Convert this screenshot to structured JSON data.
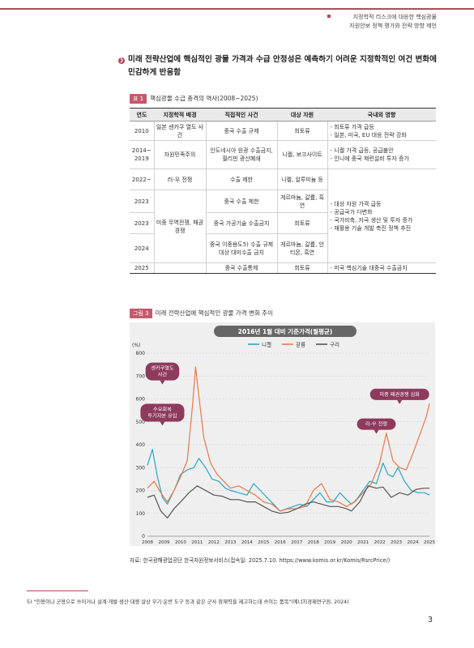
{
  "header": {
    "line1": "지정학적 리스크에 대응한 핵심광물",
    "line2": "자원안보 정책 평가와 전략 방향 제언"
  },
  "section": {
    "icon_char": "❯",
    "title": "미래 전략산업에 핵심적인 광물 가격과 수급 안정성은 예측하기 어려운 지정학적인 여건 변화에 민감하게 반응함"
  },
  "table": {
    "tag": "표 1",
    "title": "핵심광물 수급 충격의 역사(2008~2025)",
    "headers": [
      "연도",
      "지정학적 배경",
      "직접적인 사건",
      "대상 자원",
      "국내외 영향"
    ],
    "rows": [
      {
        "year": "2010",
        "background": "일본 센카쿠 열도 사건",
        "event": "중국 수출 규제",
        "resource": "희토류",
        "impact": "- 희토류 가격 급등\n- 일본, 미국, EU 대응 전략 강화"
      },
      {
        "year": "2014~ 2019",
        "background": "자원민족주의",
        "event": "인도네시아 원광 수출금지, 필리핀 광산폐쇄",
        "resource": "니켈, 보크사이트",
        "impact": "- 니켈 가격 급등, 공급불안\n- 인니에 중국 제련설비 투자 증가"
      },
      {
        "year": "2022~",
        "background": "러-우 전쟁",
        "event": "수출 제한",
        "resource": "니켈, 알루미늄 등",
        "impact": ""
      },
      {
        "year": "2023",
        "background": "",
        "event": "중국 수출 제한",
        "resource": "게르마늄, 갈륨, 흑연",
        "impact": ""
      },
      {
        "year": "2023",
        "background": "",
        "event": "중국 가공기술 수출금지",
        "resource": "희토류",
        "impact": ""
      },
      {
        "year": "2024",
        "background": "",
        "event": "중국 이중용도5) 수출 규제 대상 대미수출 금지",
        "resource": "게르마늄, 갈륨, 안티몬, 흑연",
        "impact": ""
      },
      {
        "year": "2025",
        "background": "",
        "event": "중국 수출통제",
        "resource": "희토류",
        "impact": "- 미국 핵심기술 대중국 수출금지"
      }
    ],
    "merged_background": "미중 무역전쟁, 패권경쟁",
    "merged_impact": "- 대상 자원 가격 급등\n- 공급국가 다변화\n- 국가비축, 자국 생산 및 투자 증가\n- 재활용 기술 개발 촉진 정책 추진"
  },
  "figure": {
    "tag": "그림 3",
    "title": "미래 전략산업에 핵심적인 광물 가격 변화 추이"
  },
  "chart_data": {
    "type": "line",
    "title": "2016년 1월 대비 기준가격(월평균)",
    "ylabel": "(%)",
    "ylim": [
      0,
      800
    ],
    "yticks": [
      0,
      100,
      200,
      300,
      400,
      500,
      600,
      700,
      800
    ],
    "xlim": [
      2008,
      2025
    ],
    "xticks": [
      "2008",
      "2009",
      "2010",
      "2011",
      "2012",
      "2013",
      "2014",
      "2015",
      "2016",
      "2017",
      "2018",
      "2019",
      "2020",
      "2021",
      "2022",
      "2023",
      "2024",
      "2025"
    ],
    "grid": true,
    "legend": "top-center",
    "series": [
      {
        "name": "니켈",
        "color": "#2aa5c9",
        "x": [
          2008,
          2008.3,
          2008.6,
          2008.9,
          2009.2,
          2009.6,
          2010,
          2010.4,
          2010.8,
          2011.1,
          2011.5,
          2011.9,
          2012.3,
          2012.7,
          2013,
          2013.5,
          2014,
          2014.4,
          2014.8,
          2015.2,
          2015.6,
          2016,
          2016.4,
          2016.8,
          2017.2,
          2017.6,
          2018,
          2018.4,
          2018.8,
          2019.2,
          2019.6,
          2020,
          2020.3,
          2020.6,
          2021,
          2021.4,
          2021.8,
          2022.2,
          2022.5,
          2022.8,
          2023.1,
          2023.5,
          2023.9,
          2024.3,
          2024.7,
          2025
        ],
        "y": [
          310,
          380,
          260,
          170,
          140,
          200,
          270,
          290,
          300,
          340,
          300,
          250,
          240,
          210,
          200,
          190,
          180,
          230,
          200,
          170,
          140,
          110,
          120,
          130,
          140,
          130,
          160,
          190,
          150,
          150,
          190,
          160,
          140,
          160,
          200,
          240,
          230,
          320,
          270,
          260,
          300,
          240,
          200,
          190,
          190,
          180
        ]
      },
      {
        "name": "갈륨",
        "color": "#e8794a",
        "x": [
          2008,
          2008.4,
          2008.8,
          2009.2,
          2009.6,
          2010,
          2010.4,
          2010.7,
          2010.9,
          2011.1,
          2011.4,
          2011.8,
          2012.2,
          2012.6,
          2013,
          2013.5,
          2014,
          2014.5,
          2015,
          2015.5,
          2016,
          2016.5,
          2017,
          2017.5,
          2018,
          2018.5,
          2019,
          2019.5,
          2020,
          2020.5,
          2021,
          2021.5,
          2022,
          2022.4,
          2022.8,
          2023.2,
          2023.6,
          2024,
          2024.4,
          2024.8,
          2025
        ],
        "y": [
          210,
          240,
          190,
          150,
          200,
          260,
          330,
          560,
          740,
          610,
          430,
          320,
          270,
          240,
          210,
          220,
          200,
          180,
          150,
          140,
          110,
          120,
          120,
          130,
          200,
          230,
          160,
          150,
          130,
          150,
          190,
          230,
          320,
          450,
          330,
          300,
          290,
          360,
          440,
          520,
          580
        ]
      },
      {
        "name": "구리",
        "color": "#555555",
        "x": [
          2008,
          2008.4,
          2008.8,
          2009.2,
          2009.6,
          2010,
          2010.5,
          2011,
          2011.5,
          2012,
          2012.5,
          2013,
          2013.5,
          2014,
          2014.5,
          2015,
          2015.5,
          2016,
          2016.5,
          2017,
          2017.5,
          2018,
          2018.5,
          2019,
          2019.5,
          2020,
          2020.3,
          2020.8,
          2021.3,
          2021.8,
          2022.2,
          2022.7,
          2023.2,
          2023.7,
          2024.2,
          2024.7,
          2025
        ],
        "y": [
          170,
          180,
          110,
          80,
          120,
          150,
          190,
          220,
          200,
          180,
          175,
          160,
          160,
          150,
          150,
          130,
          110,
          100,
          105,
          120,
          140,
          150,
          140,
          130,
          130,
          120,
          110,
          150,
          220,
          210,
          215,
          170,
          190,
          180,
          205,
          210,
          210
        ]
      }
    ],
    "annotations": [
      {
        "text": "센카쿠열도\n사건",
        "x": 2008.9,
        "y": 720
      },
      {
        "text": "수요회복\n투기자본 유입",
        "x": 2008.9,
        "y": 540
      },
      {
        "text": "미중 패권경쟁 심화",
        "x": 2023.2,
        "y": 620
      },
      {
        "text": "러-우 전쟁",
        "x": 2021.8,
        "y": 490
      }
    ]
  },
  "source": "자료: 한국광해광업공단 한국자원정보서비스(접속일: 2025.7.10. https://www.komis.or.kr/Komis/RsrcPrice/)",
  "footnote": "5) \"인용이나 군용으로 쓰이거나 설계·개발·생산·대량 살상 무기·운반 도구 등과 같은 군사 잠재력을 제고하는데 쓰이는 품목\"(에너지경제연구원, 2024)",
  "page_number": "3"
}
